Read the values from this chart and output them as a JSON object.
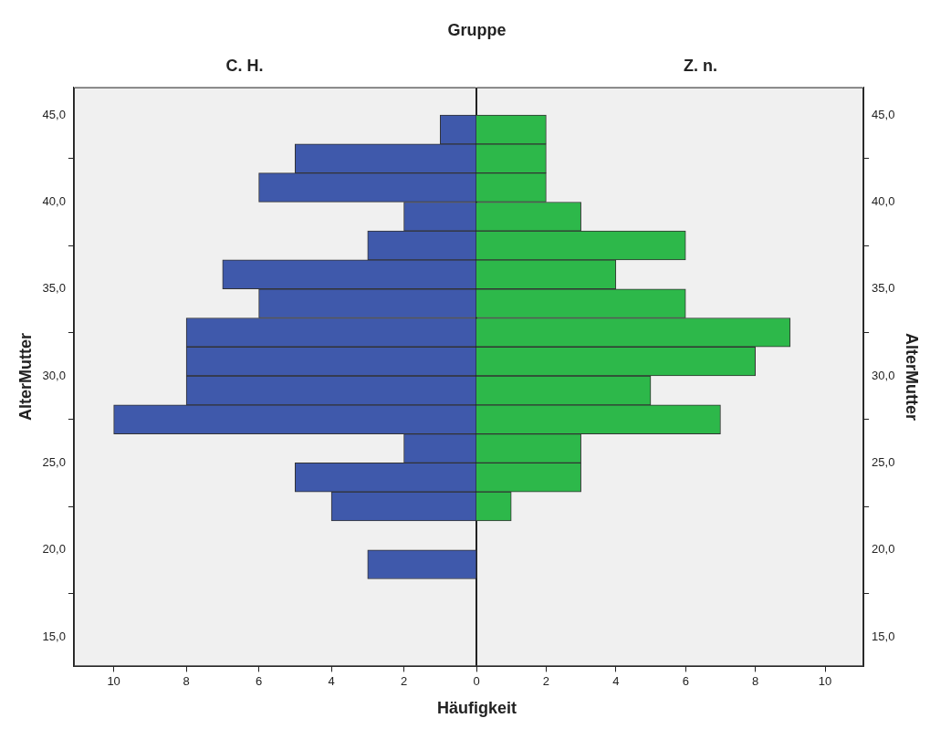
{
  "chart_data": [
    {
      "type": "histogram",
      "orientation": "horizontal",
      "title": "C. H.",
      "ylabel": "AlterMutter",
      "xlabel": "Häufigkeit",
      "annotations": [
        "Gruppe"
      ],
      "bins": [
        18.33,
        20,
        21.67,
        23.33,
        25,
        26.67,
        28.33,
        30,
        31.67,
        33.33,
        35,
        36.67,
        38.33,
        40,
        41.67,
        43.33,
        45
      ],
      "values": [
        3,
        0,
        4,
        5,
        2,
        10,
        8,
        8,
        8,
        6,
        7,
        3,
        2,
        6,
        5,
        1
      ],
      "color": "#3f59ab",
      "xlim": [
        11.1,
        0
      ],
      "xticks": [
        0,
        2,
        4,
        6,
        8,
        10
      ],
      "ylim": [
        13.3,
        46.6
      ],
      "yticks": [
        {
          "value": 15,
          "label": "15,0"
        },
        {
          "value": 20,
          "label": "20,0"
        },
        {
          "value": 25,
          "label": "25,0"
        },
        {
          "value": 30,
          "label": "30,0"
        },
        {
          "value": 35,
          "label": "35,0"
        },
        {
          "value": 40,
          "label": "40,0"
        },
        {
          "value": 45,
          "label": "45,0"
        }
      ],
      "grid": false
    },
    {
      "type": "histogram",
      "orientation": "horizontal",
      "title": "Z. n.",
      "ylabel": "AlterMutter",
      "bins": [
        18.33,
        20,
        21.67,
        23.33,
        25,
        26.67,
        28.33,
        30,
        31.67,
        33.33,
        35,
        36.67,
        38.33,
        40,
        41.67,
        43.33,
        45
      ],
      "values": [
        0,
        0,
        1,
        3,
        3,
        7,
        5,
        8,
        9,
        6,
        4,
        6,
        3,
        2,
        2,
        2
      ],
      "color": "#2db84a",
      "xlim": [
        0,
        11.1
      ],
      "xticks": [
        2,
        4,
        6,
        8,
        10
      ],
      "ylim": [
        13.3,
        46.6
      ],
      "yticks": [
        {
          "value": 15,
          "label": "15,0"
        },
        {
          "value": 20,
          "label": "20,0"
        },
        {
          "value": 25,
          "label": "25,0"
        },
        {
          "value": 30,
          "label": "30,0"
        },
        {
          "value": 35,
          "label": "35,0"
        },
        {
          "value": 40,
          "label": "40,0"
        },
        {
          "value": 45,
          "label": "45,0"
        }
      ],
      "grid": false
    }
  ]
}
